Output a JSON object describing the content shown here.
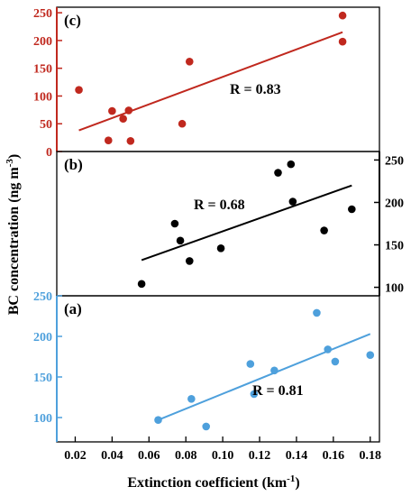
{
  "chart_data": {
    "type": "scatter",
    "xlabel": "Extinction coefficient (km",
    "xlabel_sup": "-1",
    "xlabel_end": ")",
    "ylabel": "BC concentration (ng m",
    "ylabel_sup": "-3",
    "ylabel_end": ")",
    "xlim": [
      0.01,
      0.185
    ],
    "xticks": [
      "0.02",
      "0.04",
      "0.06",
      "0.08",
      "0.10",
      "0.12",
      "0.14",
      "0.16",
      "0.18"
    ],
    "panels": [
      {
        "label": "(c)",
        "color": "#c0281e",
        "axis_color": "#c0281e",
        "axis_side": "left",
        "ylim": [
          0,
          260
        ],
        "yticks": [
          "0",
          "50",
          "100",
          "150",
          "200",
          "250"
        ],
        "r_text": "R = 0.83",
        "fit": {
          "x": [
            0.022,
            0.165
          ],
          "y": [
            38,
            215
          ]
        },
        "x": [
          0.022,
          0.038,
          0.04,
          0.046,
          0.049,
          0.05,
          0.078,
          0.082,
          0.165,
          0.165
        ],
        "y": [
          111,
          20,
          73,
          59,
          74,
          19,
          50,
          162,
          245,
          198
        ]
      },
      {
        "label": "(b)",
        "color": "#000000",
        "axis_color": "#000000",
        "axis_side": "right",
        "ylim": [
          90,
          260
        ],
        "yticks": [
          "100",
          "150",
          "200",
          "250"
        ],
        "r_text": "R = 0.68",
        "fit": {
          "x": [
            0.056,
            0.17
          ],
          "y": [
            132,
            220
          ]
        },
        "x": [
          0.056,
          0.074,
          0.077,
          0.082,
          0.099,
          0.13,
          0.137,
          0.138,
          0.155,
          0.17
        ],
        "y": [
          104,
          175,
          155,
          131,
          146,
          235,
          245,
          201,
          167,
          192
        ]
      },
      {
        "label": "(a)",
        "color": "#4ea0dc",
        "axis_color": "#4ea0dc",
        "axis_side": "left",
        "ylim": [
          70,
          250
        ],
        "yticks": [
          "100",
          "150",
          "200",
          "250"
        ],
        "r_text": "R = 0.81",
        "fit": {
          "x": [
            0.065,
            0.18
          ],
          "y": [
            97,
            203
          ]
        },
        "x": [
          0.065,
          0.083,
          0.091,
          0.115,
          0.117,
          0.128,
          0.151,
          0.157,
          0.161,
          0.18
        ],
        "y": [
          97,
          123,
          89,
          166,
          129,
          158,
          229,
          184,
          169,
          177
        ]
      }
    ]
  }
}
